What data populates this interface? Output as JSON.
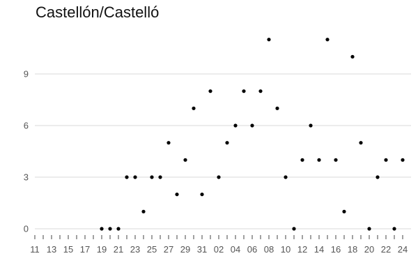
{
  "chart_data": {
    "type": "scatter",
    "title": "Castellón/Castelló",
    "xlabel": "",
    "ylabel": "",
    "ylim": [
      0,
      12
    ],
    "y_ticks": [
      0,
      3,
      6,
      9
    ],
    "x_tick_labels": [
      "11",
      "13",
      "15",
      "17",
      "19",
      "21",
      "23",
      "25",
      "27",
      "29",
      "31",
      "02",
      "04",
      "06",
      "08",
      "10",
      "12",
      "14",
      "16",
      "18",
      "20",
      "22",
      "24"
    ],
    "x_range": [
      0,
      44
    ],
    "grid": "horizontal",
    "legend": "none",
    "colors": {
      "point": "#000000",
      "grid": "#e6e6e6",
      "text": "#555555"
    },
    "points": [
      {
        "x": 8,
        "y": 0
      },
      {
        "x": 9,
        "y": 0
      },
      {
        "x": 10,
        "y": 0
      },
      {
        "x": 11,
        "y": 3
      },
      {
        "x": 12,
        "y": 3
      },
      {
        "x": 13,
        "y": 1
      },
      {
        "x": 14,
        "y": 3
      },
      {
        "x": 15,
        "y": 3
      },
      {
        "x": 16,
        "y": 5
      },
      {
        "x": 17,
        "y": 2
      },
      {
        "x": 18,
        "y": 4
      },
      {
        "x": 19,
        "y": 7
      },
      {
        "x": 20,
        "y": 2
      },
      {
        "x": 21,
        "y": 8
      },
      {
        "x": 22,
        "y": 3
      },
      {
        "x": 23,
        "y": 5
      },
      {
        "x": 24,
        "y": 6
      },
      {
        "x": 25,
        "y": 8
      },
      {
        "x": 26,
        "y": 6
      },
      {
        "x": 27,
        "y": 8
      },
      {
        "x": 28,
        "y": 11
      },
      {
        "x": 29,
        "y": 7
      },
      {
        "x": 30,
        "y": 3
      },
      {
        "x": 31,
        "y": 0
      },
      {
        "x": 32,
        "y": 4
      },
      {
        "x": 33,
        "y": 6
      },
      {
        "x": 34,
        "y": 4
      },
      {
        "x": 35,
        "y": 11
      },
      {
        "x": 36,
        "y": 4
      },
      {
        "x": 37,
        "y": 1
      },
      {
        "x": 38,
        "y": 10
      },
      {
        "x": 39,
        "y": 5
      },
      {
        "x": 40,
        "y": 0
      },
      {
        "x": 41,
        "y": 3
      },
      {
        "x": 42,
        "y": 4
      },
      {
        "x": 43,
        "y": 0
      },
      {
        "x": 44,
        "y": 4
      }
    ]
  }
}
